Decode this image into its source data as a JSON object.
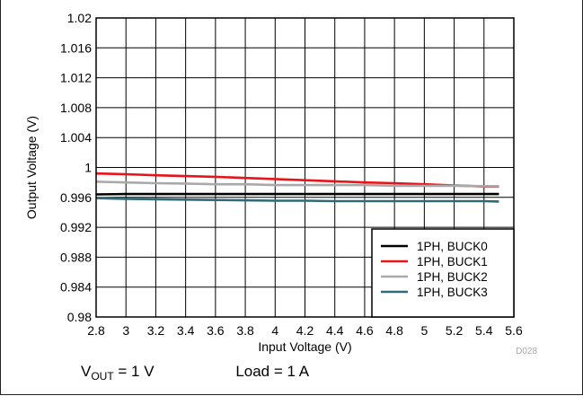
{
  "chart_data": {
    "type": "line",
    "title": "",
    "xlabel": "Input Voltage (V)",
    "ylabel": "Output Voltage (V)",
    "xlim": [
      2.8,
      5.6
    ],
    "ylim": [
      0.98,
      1.02
    ],
    "x_ticks": [
      "2.8",
      "3",
      "3.2",
      "3.4",
      "3.6",
      "3.8",
      "4",
      "4.2",
      "4.4",
      "4.6",
      "4.8",
      "5",
      "5.2",
      "5.4",
      "5.6"
    ],
    "y_ticks": [
      "0.98",
      "0.984",
      "0.988",
      "0.992",
      "0.996",
      "1",
      "1.004",
      "1.008",
      "1.012",
      "1.016",
      "1.02"
    ],
    "grid": true,
    "legend_position": "bottom-right",
    "x": [
      2.8,
      3.0,
      3.2,
      3.4,
      3.6,
      3.8,
      4.0,
      4.2,
      4.4,
      4.6,
      4.8,
      5.0,
      5.2,
      5.4,
      5.5
    ],
    "series": [
      {
        "name": "1PH, BUCK0",
        "color": "#000000",
        "values": [
          0.9964,
          0.99645,
          0.99645,
          0.99645,
          0.99645,
          0.99645,
          0.99645,
          0.99645,
          0.99645,
          0.99645,
          0.99645,
          0.99645,
          0.99645,
          0.99645,
          0.99645
        ]
      },
      {
        "name": "1PH, BUCK1",
        "color": "#e8141a",
        "values": [
          0.9992,
          0.9991,
          0.99895,
          0.99885,
          0.99875,
          0.9986,
          0.99845,
          0.9983,
          0.99815,
          0.998,
          0.9979,
          0.99775,
          0.9976,
          0.99745,
          0.99745
        ]
      },
      {
        "name": "1PH, BUCK2",
        "color": "#a9a9a9",
        "values": [
          0.9981,
          0.998,
          0.9979,
          0.99785,
          0.99775,
          0.99775,
          0.99765,
          0.99765,
          0.99765,
          0.99765,
          0.99755,
          0.99755,
          0.99755,
          0.9975,
          0.9975
        ]
      },
      {
        "name": "1PH, BUCK3",
        "color": "#2f6a79",
        "values": [
          0.9959,
          0.9958,
          0.99575,
          0.9957,
          0.99565,
          0.9956,
          0.99555,
          0.99555,
          0.9955,
          0.9955,
          0.9955,
          0.9955,
          0.9955,
          0.9955,
          0.99545
        ]
      }
    ]
  },
  "figure_id": "D028",
  "conditions": {
    "vout_prefix": "V",
    "vout_sub": "OUT",
    "vout_value": " = 1 V",
    "load": "Load = 1 A"
  }
}
